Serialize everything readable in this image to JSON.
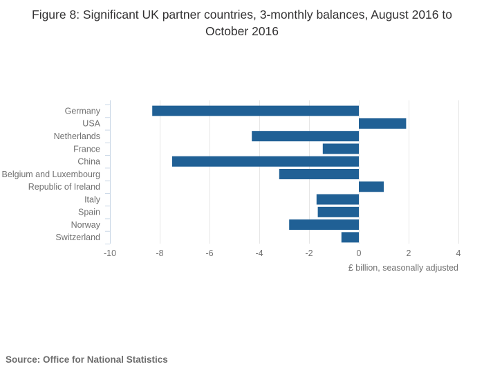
{
  "title": "Figure 8: Significant UK partner countries, 3-monthly balances, August 2016 to October 2016",
  "source": "Source: Office for National Statistics",
  "colors": {
    "bar": "#206095",
    "gridline": "#e6e6e6",
    "axis": "#c9d7e6",
    "tick_text": "#707070",
    "title_text": "#323132",
    "source_text": "#6d6d6d"
  },
  "chart_data": {
    "type": "bar",
    "orientation": "horizontal",
    "title": "Figure 8: Significant UK partner countries, 3-monthly balances, August 2016 to October 2016",
    "categories": [
      "Germany",
      "USA",
      "Netherlands",
      "France",
      "China",
      "Belgium and Luxembourg",
      "Republic of Ireland",
      "Italy",
      "Spain",
      "Norway",
      "Switzerland"
    ],
    "values": [
      -8.3,
      1.9,
      -4.3,
      -1.45,
      -7.5,
      -3.2,
      1.0,
      -1.7,
      -1.65,
      -2.8,
      -0.7
    ],
    "xlabel": "£ billion, seasonally adjusted",
    "ylabel": "",
    "xlim": [
      -10,
      4
    ],
    "xticks": [
      -10,
      -8,
      -6,
      -4,
      -2,
      0,
      2,
      4
    ],
    "grid": true,
    "legend": false
  }
}
